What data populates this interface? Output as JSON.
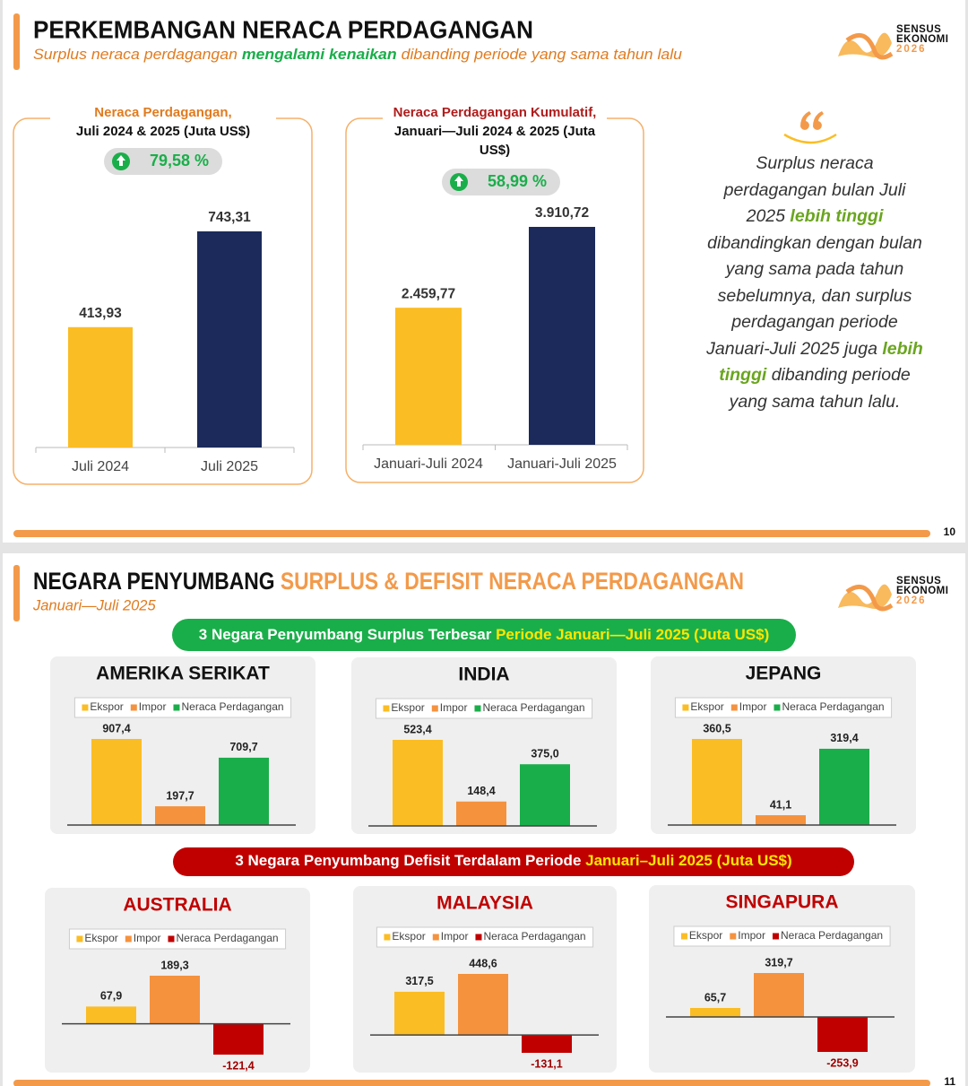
{
  "logo": [
    "SENSUS",
    "EKONOMI",
    "2026"
  ],
  "slides": [
    {
      "title": "PERKEMBANGAN NERACA PERDAGANGAN",
      "subtitle": [
        "Surplus neraca perdagangan ",
        "mengalami kenaikan",
        " dibanding periode yang sama tahun lalu"
      ],
      "quote": [
        "Surplus neraca perdagangan bulan Juli 2025 ",
        "lebih tinggi",
        " dibandingkan dengan bulan yang sama pada tahun sebelumnya, dan surplus perdagangan periode Januari-Juli 2025 juga ",
        "lebih tinggi",
        " dibanding periode yang sama tahun lalu."
      ],
      "page_number": "10"
    },
    {
      "title": [
        "NEGARA PENYUMBANG ",
        "SURPLUS & DEFISIT NERACA PERDAGANGAN"
      ],
      "subtitle": "Januari—Juli 2025",
      "surplus_banner": [
        "3 Negara Penyumbang Surplus Terbesar ",
        "Periode Januari—Juli 2025 (Juta US$)"
      ],
      "deficit_banner": [
        "3 Negara Penyumbang Defisit Terdalam Periode ",
        "Januari–Juli 2025 (Juta US$)"
      ],
      "page_number": "11"
    }
  ],
  "chart_data": [
    {
      "type": "bar",
      "title": "Neraca Perdagangan,",
      "subtitle": "Juli 2024 & 2025 (Juta US$)",
      "title_color": "#e07b1f",
      "change_label": "79,58 %",
      "categories": [
        "Juli 2024",
        "Juli 2025"
      ],
      "values": [
        413.93,
        743.31
      ],
      "value_labels": [
        "413,93",
        "743,31"
      ],
      "colors": [
        "#fbbd24",
        "#1b2a5a"
      ]
    },
    {
      "type": "bar",
      "title": "Neraca Perdagangan Kumulatif,",
      "subtitle": "Januari—Juli 2024 & 2025 (Juta US$)",
      "title_color": "#b01c1c",
      "change_label": "58,99 %",
      "categories": [
        "Januari-Juli 2024",
        "Januari-Juli 2025"
      ],
      "values": [
        2459.77,
        3910.72
      ],
      "value_labels": [
        "2.459,77",
        "3.910,72"
      ],
      "colors": [
        "#fbbd24",
        "#1b2a5a"
      ]
    },
    {
      "type": "bar",
      "title": "AMERIKA SERIKAT",
      "title_color": "#111111",
      "categories": [
        "Ekspor",
        "Impor",
        "Neraca Perdagangan"
      ],
      "values": [
        907.4,
        197.7,
        709.7
      ],
      "value_labels": [
        "907,4",
        "197,7",
        "709,7"
      ],
      "colors": [
        "#fbbd24",
        "#f5923e",
        "#1aae4a"
      ]
    },
    {
      "type": "bar",
      "title": "INDIA",
      "title_color": "#111111",
      "categories": [
        "Ekspor",
        "Impor",
        "Neraca Perdagangan"
      ],
      "values": [
        523.4,
        148.4,
        375.0
      ],
      "value_labels": [
        "523,4",
        "148,4",
        "375,0"
      ],
      "colors": [
        "#fbbd24",
        "#f5923e",
        "#1aae4a"
      ]
    },
    {
      "type": "bar",
      "title": "JEPANG",
      "title_color": "#111111",
      "categories": [
        "Ekspor",
        "Impor",
        "Neraca Perdagangan"
      ],
      "values": [
        360.5,
        41.1,
        319.4
      ],
      "value_labels": [
        "360,5",
        "41,1",
        "319,4"
      ],
      "colors": [
        "#fbbd24",
        "#f5923e",
        "#1aae4a"
      ]
    },
    {
      "type": "bar",
      "title": "AUSTRALIA",
      "title_color": "#c00000",
      "categories": [
        "Ekspor",
        "Impor",
        "Neraca Perdagangan"
      ],
      "values": [
        67.9,
        189.3,
        -121.4
      ],
      "value_labels": [
        "67,9",
        "189,3",
        "-121,4"
      ],
      "colors": [
        "#fbbd24",
        "#f5923e",
        "#c00000"
      ]
    },
    {
      "type": "bar",
      "title": "MALAYSIA",
      "title_color": "#c00000",
      "categories": [
        "Ekspor",
        "Impor",
        "Neraca Perdagangan"
      ],
      "values": [
        317.5,
        448.6,
        -131.1
      ],
      "value_labels": [
        "317,5",
        "448,6",
        "-131,1"
      ],
      "colors": [
        "#fbbd24",
        "#f5923e",
        "#c00000"
      ]
    },
    {
      "type": "bar",
      "title": "SINGAPURA",
      "title_color": "#c00000",
      "categories": [
        "Ekspor",
        "Impor",
        "Neraca Perdagangan"
      ],
      "values": [
        65.7,
        319.7,
        -253.9
      ],
      "value_labels": [
        "65,7",
        "319,7",
        "-253,9"
      ],
      "colors": [
        "#fbbd24",
        "#f5923e",
        "#c00000"
      ]
    }
  ]
}
